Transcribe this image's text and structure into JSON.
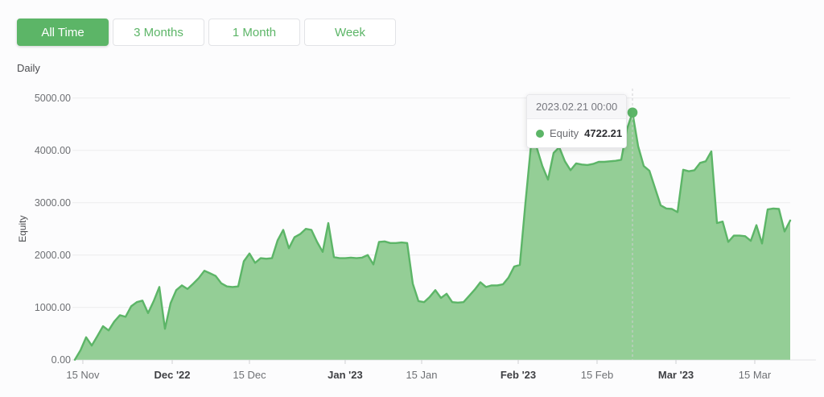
{
  "toolbar": {
    "buttons": [
      {
        "label": "All Time",
        "active": true
      },
      {
        "label": "3 Months",
        "active": false
      },
      {
        "label": "1 Month",
        "active": false
      },
      {
        "label": "Week",
        "active": false
      }
    ]
  },
  "period_label": "Daily",
  "tooltip": {
    "date": "2023.02.21 00:00",
    "series": "Equity",
    "value": "4722.21"
  },
  "colors": {
    "accent_green": "#5cb567",
    "area_fill": "#8ecb90",
    "grid": "#ebebed",
    "axis_line": "#e4e4e7",
    "tick_mark": "#cfd0d3",
    "crosshair": "#cfcfd2",
    "tooltip_header_bg": "#f6f6f8"
  },
  "chart_data": {
    "type": "area",
    "title": "",
    "series_name": "Equity",
    "xlabel": "",
    "ylabel": "Equity",
    "ylim": [
      0,
      5000
    ],
    "grid": true,
    "legend": "none",
    "y_ticks": [
      {
        "label": "0.00",
        "value": 0
      },
      {
        "label": "1000.00",
        "value": 1000
      },
      {
        "label": "2000.00",
        "value": 2000
      },
      {
        "label": "3000.00",
        "value": 3000
      },
      {
        "label": "4000.00",
        "value": 4000
      },
      {
        "label": "5000.00",
        "value": 5000
      }
    ],
    "x_ticks": [
      {
        "label": "15 Nov",
        "pos": 0.0112,
        "bold": false
      },
      {
        "label": "Dec '22",
        "pos": 0.1361,
        "bold": true
      },
      {
        "label": "15 Dec",
        "pos": 0.2441,
        "bold": false
      },
      {
        "label": "Jan '23",
        "pos": 0.3779,
        "bold": true
      },
      {
        "label": "15 Jan",
        "pos": 0.4848,
        "bold": false
      },
      {
        "label": "Feb '23",
        "pos": 0.6198,
        "bold": true
      },
      {
        "label": "15 Feb",
        "pos": 0.73,
        "bold": false
      },
      {
        "label": "Mar '23",
        "pos": 0.8403,
        "bold": true
      },
      {
        "label": "15 Mar",
        "pos": 0.9505,
        "bold": false
      }
    ],
    "x_range_dates": [
      "2022-11-14",
      "2023-03-21"
    ],
    "highlight": {
      "index": 99,
      "value": 4722.21,
      "date": "2023.02.21 00:00",
      "series": "Equity"
    },
    "values": [
      0,
      180,
      430,
      270,
      450,
      640,
      560,
      730,
      850,
      820,
      1020,
      1100,
      1130,
      890,
      1120,
      1390,
      590,
      1080,
      1330,
      1420,
      1350,
      1450,
      1560,
      1700,
      1650,
      1600,
      1460,
      1400,
      1390,
      1400,
      1880,
      2030,
      1850,
      1940,
      1930,
      1940,
      2280,
      2480,
      2130,
      2340,
      2400,
      2500,
      2480,
      2250,
      2060,
      2610,
      1960,
      1940,
      1940,
      1950,
      1940,
      1950,
      2000,
      1820,
      2250,
      2260,
      2230,
      2230,
      2240,
      2230,
      1450,
      1120,
      1100,
      1200,
      1330,
      1180,
      1260,
      1100,
      1090,
      1100,
      1220,
      1340,
      1480,
      1390,
      1420,
      1420,
      1440,
      1570,
      1780,
      1810,
      3000,
      4120,
      4050,
      3700,
      3440,
      3950,
      4060,
      3790,
      3620,
      3750,
      3730,
      3720,
      3740,
      3780,
      3780,
      3790,
      3800,
      3820,
      4400,
      4722.21,
      4080,
      3700,
      3610,
      3280,
      2950,
      2890,
      2880,
      2820,
      3630,
      3600,
      3620,
      3760,
      3790,
      3980,
      2610,
      2640,
      2250,
      2370,
      2370,
      2360,
      2270,
      2570,
      2220,
      2870,
      2890,
      2880,
      2450,
      2660
    ]
  }
}
